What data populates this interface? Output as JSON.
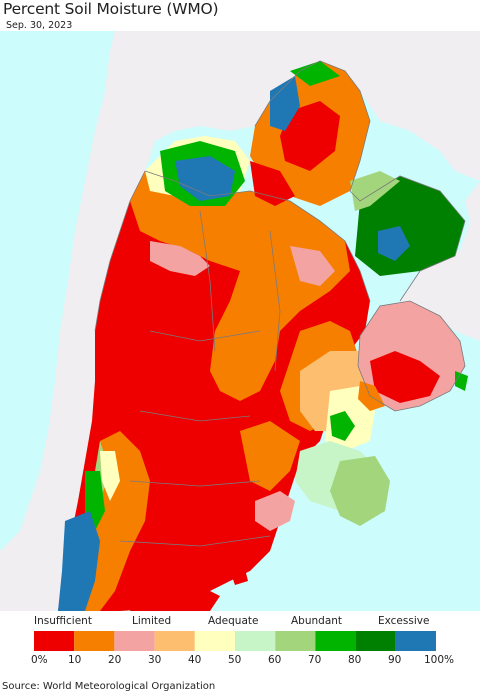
{
  "title": "Percent Soil Moisture (WMO)",
  "date": "Sep. 30, 2023",
  "source": "Source: World Meteorological Organization",
  "legend": {
    "category_labels": [
      "Insufficient",
      "Limited",
      "Adequate",
      "Abundant",
      "Excessive"
    ],
    "colors": [
      "#ee0000",
      "#f77f00",
      "#f4a3a3",
      "#fdbf6f",
      "#ffffbe",
      "#c8f5c8",
      "#a3d67c",
      "#00b400",
      "#008000",
      "#1f78b4"
    ],
    "ticks": [
      "0%",
      "10",
      "20",
      "30",
      "40",
      "50",
      "60",
      "70",
      "80",
      "90",
      "100%"
    ]
  },
  "map_colors": {
    "ocean": "#ccfcfc",
    "outside_land": "#f0eef1",
    "borders": "#7a7a7a"
  }
}
